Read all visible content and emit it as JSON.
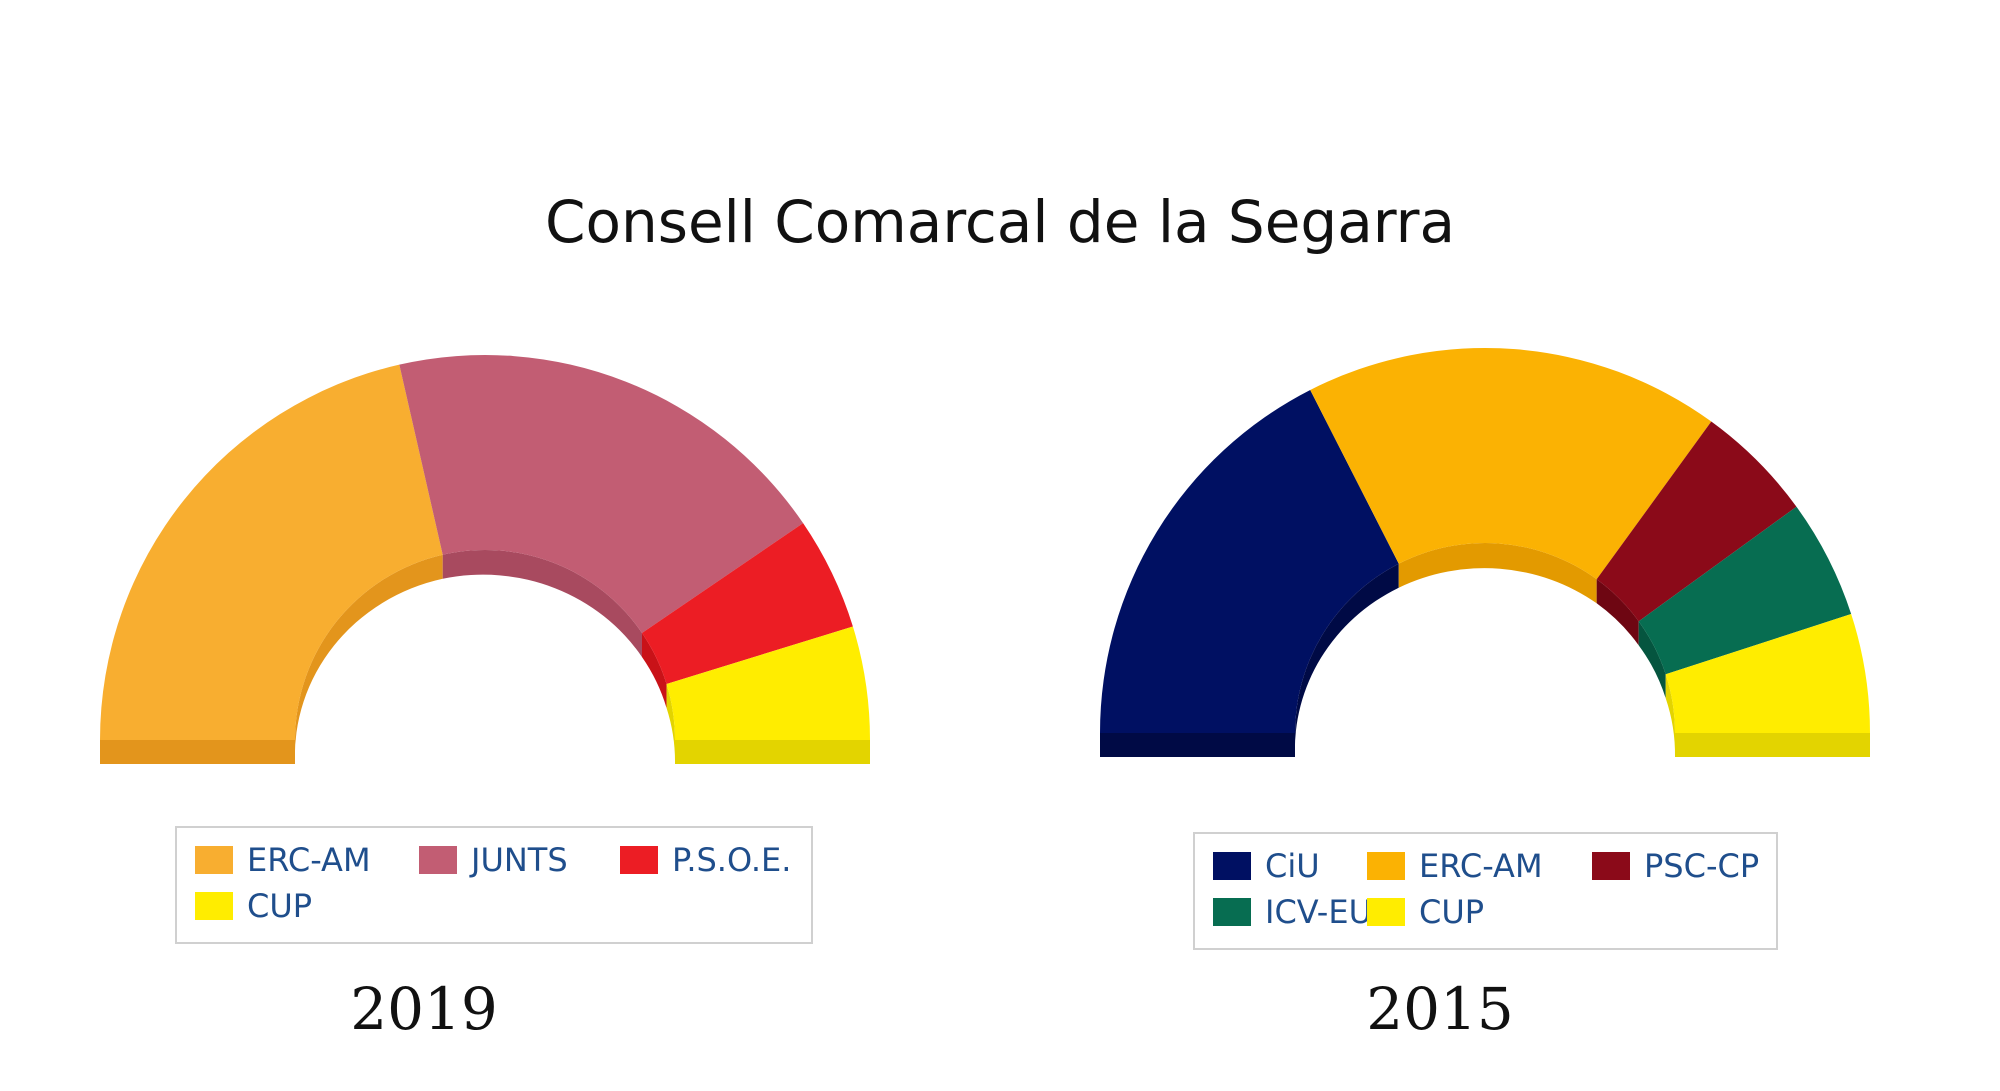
{
  "title": "Consell Comarcal de la Segarra",
  "chart_data": [
    {
      "type": "pie",
      "subtype": "parliament-semicircle",
      "caption": "2019",
      "legend_position": "bottom",
      "slices": [
        {
          "label": "ERC-AM",
          "value": 9,
          "color": "#f8ae30",
          "shade": "#e3951c"
        },
        {
          "label": "JUNTS",
          "value": 8,
          "color": "#c25d73",
          "shade": "#a84a5f"
        },
        {
          "label": "P.S.O.E.",
          "value": 2,
          "color": "#ec1d24",
          "shade": "#c91218"
        },
        {
          "label": "CUP",
          "value": 2,
          "color": "#ffed00",
          "shade": "#e3d400"
        }
      ]
    },
    {
      "type": "pie",
      "subtype": "parliament-semicircle",
      "caption": "2015",
      "legend_position": "bottom",
      "slices": [
        {
          "label": "CiU",
          "value": 7,
          "color": "#001062",
          "shade": "#000a45"
        },
        {
          "label": "ERC-AM",
          "value": 7,
          "color": "#fbb203",
          "shade": "#e39a00"
        },
        {
          "label": "PSC-CP",
          "value": 2,
          "color": "#8b0a19",
          "shade": "#6e0612"
        },
        {
          "label": "ICV-EU-E",
          "value": 2,
          "color": "#076d51",
          "shade": "#05553f"
        },
        {
          "label": "CUP",
          "value": 2,
          "color": "#ffed00",
          "shade": "#e3d400"
        }
      ]
    }
  ]
}
